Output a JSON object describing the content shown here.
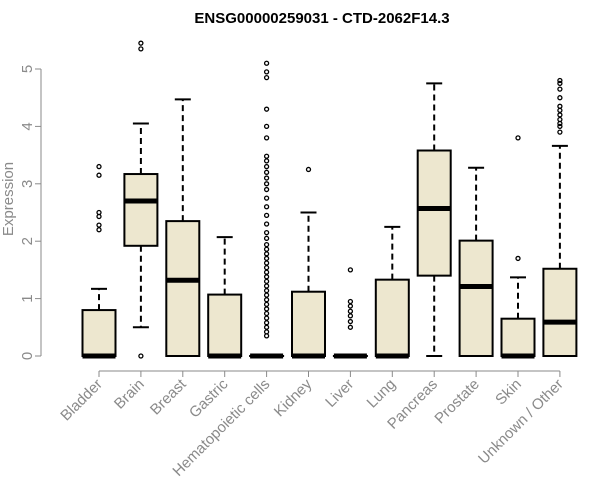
{
  "chart_data": {
    "type": "boxplot",
    "title": "ENSG00000259031 - CTD-2062F14.3",
    "xlabel": "",
    "ylabel": "Expression",
    "ylim": [
      0,
      5.2
    ],
    "yticks": [
      0,
      1,
      2,
      3,
      4,
      5
    ],
    "colors": {
      "box_fill": "#ede7cf",
      "stroke": "#000000",
      "axis": "#8a8a8a"
    },
    "categories": [
      "Bladder",
      "Brain",
      "Breast",
      "Gastric",
      "Hematopoietic cells",
      "Kidney",
      "Liver",
      "Lung",
      "Pancreas",
      "Prostate",
      "Skin",
      "Unknown / Other"
    ],
    "boxes": [
      {
        "q1": 0,
        "median": 0,
        "q3": 0.8,
        "whisker_low": 0,
        "whisker_high": 1.17,
        "outliers": [
          2.2,
          2.28,
          2.43,
          2.5,
          3.15,
          3.3
        ]
      },
      {
        "q1": 1.92,
        "median": 2.7,
        "q3": 3.17,
        "whisker_low": 0.5,
        "whisker_high": 4.05,
        "outliers": [
          0,
          5.35,
          5.45
        ]
      },
      {
        "q1": 0,
        "median": 1.32,
        "q3": 2.35,
        "whisker_low": 0,
        "whisker_high": 4.47,
        "outliers": []
      },
      {
        "q1": 0,
        "median": 0,
        "q3": 1.07,
        "whisker_low": 0,
        "whisker_high": 2.07,
        "outliers": []
      },
      {
        "q1": 0,
        "median": 0,
        "q3": 0,
        "whisker_low": 0,
        "whisker_high": 0,
        "outliers": [
          0.35,
          0.42,
          0.5,
          0.58,
          0.66,
          0.74,
          0.82,
          0.9,
          0.98,
          1.06,
          1.14,
          1.22,
          1.3,
          1.38,
          1.46,
          1.54,
          1.62,
          1.7,
          1.78,
          1.86,
          1.94,
          2.05,
          2.15,
          2.3,
          2.45,
          2.6,
          2.75,
          2.9,
          3.0,
          3.1,
          3.2,
          3.3,
          3.4,
          3.48,
          3.8,
          4.0,
          4.3,
          4.85,
          4.95,
          5.1
        ]
      },
      {
        "q1": 0,
        "median": 0,
        "q3": 1.12,
        "whisker_low": 0,
        "whisker_high": 2.5,
        "outliers": [
          3.25
        ]
      },
      {
        "q1": 0,
        "median": 0,
        "q3": 0,
        "whisker_low": 0,
        "whisker_high": 0,
        "outliers": [
          0.5,
          0.6,
          0.7,
          0.78,
          0.87,
          0.95,
          1.5
        ]
      },
      {
        "q1": 0,
        "median": 0,
        "q3": 1.33,
        "whisker_low": 0,
        "whisker_high": 2.25,
        "outliers": []
      },
      {
        "q1": 1.4,
        "median": 2.57,
        "q3": 3.58,
        "whisker_low": 0,
        "whisker_high": 4.75,
        "outliers": []
      },
      {
        "q1": 0,
        "median": 1.21,
        "q3": 2.01,
        "whisker_low": 0,
        "whisker_high": 3.28,
        "outliers": []
      },
      {
        "q1": 0,
        "median": 0,
        "q3": 0.65,
        "whisker_low": 0,
        "whisker_high": 1.37,
        "outliers": [
          1.7,
          3.8
        ]
      },
      {
        "q1": 0,
        "median": 0.59,
        "q3": 1.52,
        "whisker_low": 0,
        "whisker_high": 3.66,
        "outliers": [
          3.9,
          4.0,
          4.05,
          4.12,
          4.2,
          4.28,
          4.35,
          4.5,
          4.65,
          4.75,
          4.8
        ]
      }
    ]
  }
}
